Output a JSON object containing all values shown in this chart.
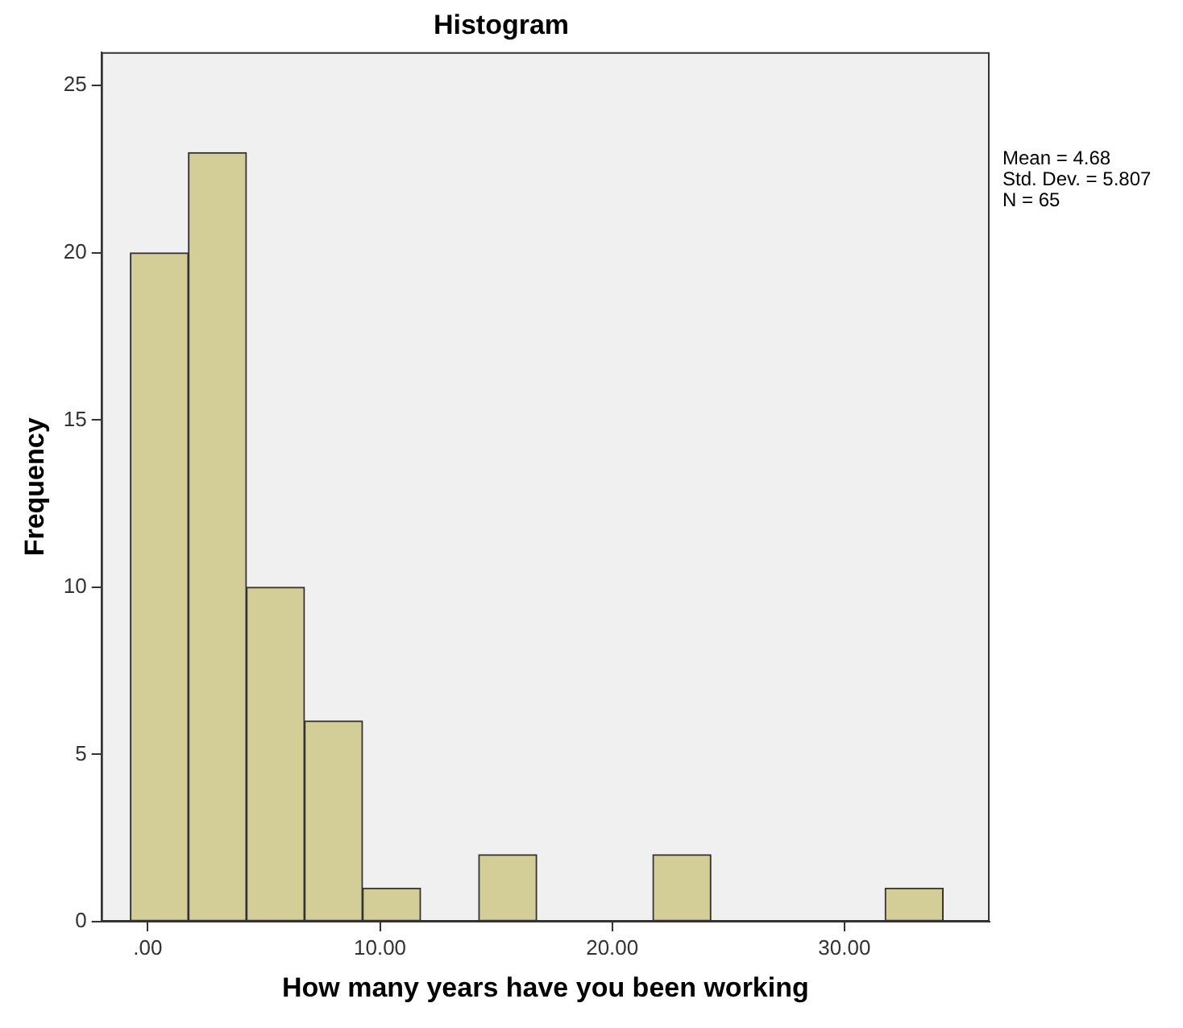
{
  "chart_data": {
    "type": "histogram",
    "title": "Histogram",
    "xlabel": "How many years have you been working",
    "ylabel": "Frequency",
    "bins": [
      -0.75,
      1.75,
      4.25,
      6.75,
      9.25,
      11.75,
      14.25,
      16.75,
      19.25,
      21.75,
      24.25,
      26.75,
      29.25,
      31.75,
      34.25
    ],
    "values": [
      20,
      23,
      10,
      6,
      1,
      0,
      2,
      0,
      0,
      2,
      0,
      0,
      0,
      1
    ],
    "color": "#d3ce97",
    "xlim": [
      -2,
      36.25
    ],
    "ylim": [
      0,
      26
    ],
    "xticks": [
      {
        "value": 0,
        "label": ".00"
      },
      {
        "value": 10,
        "label": "10.00"
      },
      {
        "value": 20,
        "label": "20.00"
      },
      {
        "value": 30,
        "label": "30.00"
      }
    ],
    "yticks": [
      0,
      5,
      10,
      15,
      20,
      25
    ],
    "grid": false,
    "legend": false,
    "annotations": [
      "Mean = 4.68",
      "Std. Dev. = 5.807",
      "N = 65"
    ]
  }
}
